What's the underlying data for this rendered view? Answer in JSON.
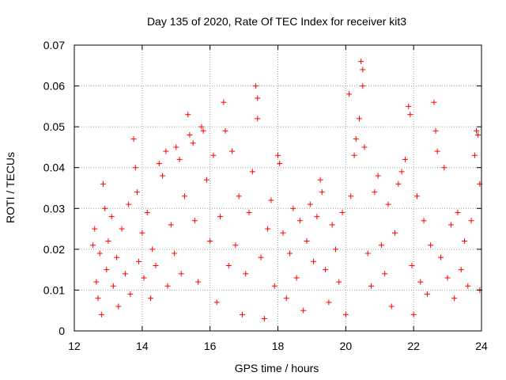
{
  "chart_data": {
    "type": "scatter",
    "title": "Day 135 of 2020, Rate Of TEC Index for receiver kit3",
    "xlabel": "GPS time / hours",
    "ylabel": "ROTI / TECUs",
    "xlim": [
      12,
      24
    ],
    "ylim": [
      0,
      0.07
    ],
    "xticks": [
      12,
      14,
      16,
      18,
      20,
      22,
      24
    ],
    "yticks": [
      0,
      0.01,
      0.02,
      0.03,
      0.04,
      0.05,
      0.06,
      0.07
    ],
    "xtick_labels": [
      "12",
      "14",
      "16",
      "18",
      "20",
      "22",
      "24"
    ],
    "ytick_labels": [
      "0",
      "0.01",
      "0.02",
      "0.03",
      "0.04",
      "0.05",
      "0.06",
      "0.07"
    ],
    "grid": true,
    "marker": "+",
    "marker_color": "#ff0000",
    "series": [
      {
        "name": "kit3",
        "points": [
          [
            12.55,
            0.021
          ],
          [
            12.6,
            0.025
          ],
          [
            12.65,
            0.012
          ],
          [
            12.7,
            0.008
          ],
          [
            12.75,
            0.019
          ],
          [
            12.8,
            0.004
          ],
          [
            12.85,
            0.036
          ],
          [
            12.9,
            0.03
          ],
          [
            12.95,
            0.015
          ],
          [
            13.0,
            0.022
          ],
          [
            13.1,
            0.028
          ],
          [
            13.15,
            0.011
          ],
          [
            13.25,
            0.018
          ],
          [
            13.3,
            0.006
          ],
          [
            13.4,
            0.025
          ],
          [
            13.5,
            0.014
          ],
          [
            13.6,
            0.031
          ],
          [
            13.65,
            0.009
          ],
          [
            13.75,
            0.047
          ],
          [
            13.8,
            0.04
          ],
          [
            13.85,
            0.034
          ],
          [
            13.9,
            0.017
          ],
          [
            14.0,
            0.024
          ],
          [
            14.05,
            0.013
          ],
          [
            14.15,
            0.029
          ],
          [
            14.25,
            0.008
          ],
          [
            14.3,
            0.02
          ],
          [
            14.4,
            0.016
          ],
          [
            14.5,
            0.041
          ],
          [
            14.6,
            0.038
          ],
          [
            14.7,
            0.044
          ],
          [
            14.75,
            0.011
          ],
          [
            14.85,
            0.026
          ],
          [
            14.95,
            0.019
          ],
          [
            15.0,
            0.045
          ],
          [
            15.1,
            0.042
          ],
          [
            15.15,
            0.014
          ],
          [
            15.25,
            0.033
          ],
          [
            15.35,
            0.053
          ],
          [
            15.4,
            0.048
          ],
          [
            15.5,
            0.046
          ],
          [
            15.55,
            0.027
          ],
          [
            15.65,
            0.012
          ],
          [
            15.75,
            0.05
          ],
          [
            15.8,
            0.049
          ],
          [
            15.9,
            0.037
          ],
          [
            16.0,
            0.022
          ],
          [
            16.1,
            0.043
          ],
          [
            16.2,
            0.007
          ],
          [
            16.3,
            0.028
          ],
          [
            16.4,
            0.056
          ],
          [
            16.45,
            0.049
          ],
          [
            16.55,
            0.016
          ],
          [
            16.65,
            0.044
          ],
          [
            16.75,
            0.021
          ],
          [
            16.85,
            0.033
          ],
          [
            16.95,
            0.004
          ],
          [
            17.05,
            0.014
          ],
          [
            17.15,
            0.029
          ],
          [
            17.25,
            0.039
          ],
          [
            17.35,
            0.06
          ],
          [
            17.4,
            0.057
          ],
          [
            17.4,
            0.052
          ],
          [
            17.5,
            0.018
          ],
          [
            17.6,
            0.003
          ],
          [
            17.7,
            0.025
          ],
          [
            17.8,
            0.032
          ],
          [
            17.9,
            0.011
          ],
          [
            18.0,
            0.043
          ],
          [
            18.05,
            0.041
          ],
          [
            18.15,
            0.024
          ],
          [
            18.25,
            0.008
          ],
          [
            18.35,
            0.019
          ],
          [
            18.45,
            0.03
          ],
          [
            18.55,
            0.013
          ],
          [
            18.65,
            0.027
          ],
          [
            18.75,
            0.005
          ],
          [
            18.85,
            0.022
          ],
          [
            18.95,
            0.031
          ],
          [
            19.05,
            0.017
          ],
          [
            19.15,
            0.028
          ],
          [
            19.25,
            0.037
          ],
          [
            19.3,
            0.034
          ],
          [
            19.4,
            0.015
          ],
          [
            19.5,
            0.007
          ],
          [
            19.6,
            0.026
          ],
          [
            19.7,
            0.02
          ],
          [
            19.8,
            0.012
          ],
          [
            19.9,
            0.029
          ],
          [
            20.0,
            0.004
          ],
          [
            20.1,
            0.058
          ],
          [
            20.15,
            0.033
          ],
          [
            20.25,
            0.043
          ],
          [
            20.3,
            0.047
          ],
          [
            20.4,
            0.052
          ],
          [
            20.45,
            0.066
          ],
          [
            20.5,
            0.064
          ],
          [
            20.5,
            0.06
          ],
          [
            20.55,
            0.045
          ],
          [
            20.65,
            0.019
          ],
          [
            20.75,
            0.011
          ],
          [
            20.85,
            0.034
          ],
          [
            20.95,
            0.038
          ],
          [
            21.05,
            0.021
          ],
          [
            21.15,
            0.014
          ],
          [
            21.25,
            0.031
          ],
          [
            21.35,
            0.006
          ],
          [
            21.45,
            0.024
          ],
          [
            21.55,
            0.036
          ],
          [
            21.65,
            0.039
          ],
          [
            21.75,
            0.042
          ],
          [
            21.85,
            0.055
          ],
          [
            21.9,
            0.053
          ],
          [
            21.95,
            0.016
          ],
          [
            22.0,
            0.004
          ],
          [
            22.1,
            0.033
          ],
          [
            22.2,
            0.012
          ],
          [
            22.3,
            0.027
          ],
          [
            22.4,
            0.009
          ],
          [
            22.5,
            0.021
          ],
          [
            22.6,
            0.056
          ],
          [
            22.65,
            0.049
          ],
          [
            22.7,
            0.044
          ],
          [
            22.8,
            0.018
          ],
          [
            22.9,
            0.04
          ],
          [
            23.0,
            0.013
          ],
          [
            23.1,
            0.026
          ],
          [
            23.2,
            0.008
          ],
          [
            23.3,
            0.029
          ],
          [
            23.4,
            0.015
          ],
          [
            23.5,
            0.022
          ],
          [
            23.6,
            0.011
          ],
          [
            23.7,
            0.027
          ],
          [
            23.8,
            0.043
          ],
          [
            23.85,
            0.049
          ],
          [
            23.9,
            0.048
          ],
          [
            23.95,
            0.036
          ],
          [
            23.95,
            0.01
          ]
        ]
      }
    ]
  }
}
